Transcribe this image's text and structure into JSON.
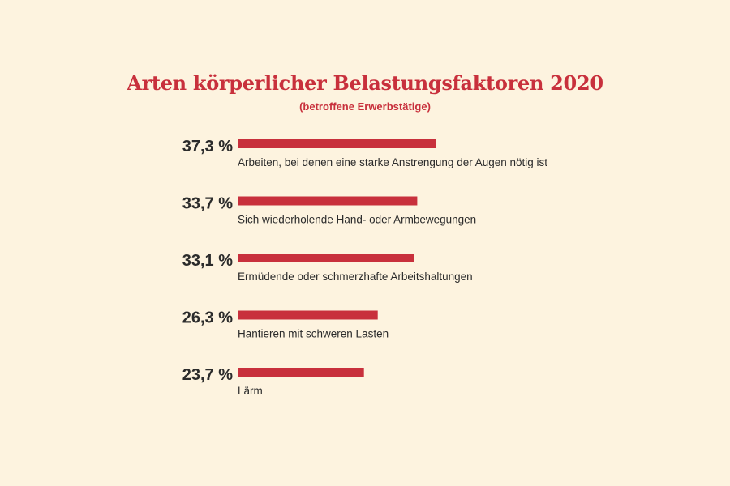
{
  "chart_data": {
    "type": "bar",
    "orientation": "horizontal",
    "title": "Arten körperlicher Belastungsfaktoren 2020",
    "subtitle": "(betroffene Erwerbstätige)",
    "value_suffix": " %",
    "categories": [
      "Arbeiten, bei denen eine starke Anstrengung der Augen nötig ist",
      "Sich wiederholende Hand- oder Armbewegungen",
      "Ermüdende oder schmerzhafte Arbeitshaltungen",
      "Hantieren mit schweren Lasten",
      "Lärm"
    ],
    "values": [
      37.3,
      33.7,
      33.1,
      26.3,
      23.7
    ],
    "value_labels": [
      "37,3 %",
      "33,7 %",
      "33,1 %",
      "26,3 %",
      "23,7 %"
    ],
    "bar_color": "#c8303c",
    "background_color": "#fdf3df",
    "legend": "none",
    "grid": false
  }
}
